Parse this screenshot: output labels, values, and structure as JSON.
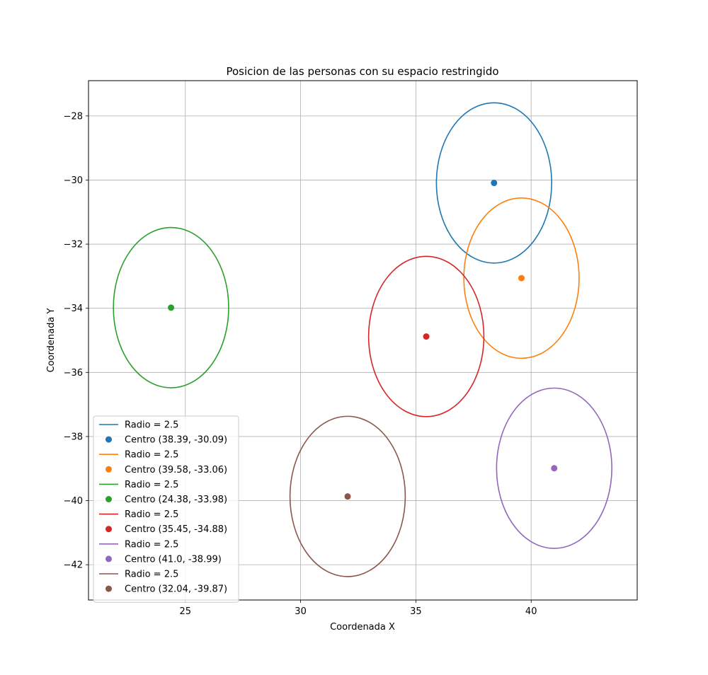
{
  "chart_data": {
    "type": "scatter",
    "title": "Posicion de las personas con su espacio restringido",
    "xlabel": "Coordenada X",
    "ylabel": "Coordenada Y",
    "xlim": [
      20.8,
      44.6
    ],
    "ylim": [
      -43.1,
      -26.9
    ],
    "xticks": [
      25,
      30,
      35,
      40
    ],
    "yticks": [
      -28,
      -30,
      -32,
      -34,
      -36,
      -38,
      -40,
      -42
    ],
    "xtick_labels": [
      "25",
      "30",
      "35",
      "40"
    ],
    "ytick_labels": [
      "−28",
      "−30",
      "−32",
      "−34",
      "−36",
      "−38",
      "−40",
      "−42"
    ],
    "grid": true,
    "legend_position": "lower-left",
    "series": [
      {
        "circle_label": "Radio = 2.5",
        "center_label": "Centro (38.39, -30.09)",
        "cx": 38.39,
        "cy": -30.09,
        "r": 2.5,
        "color": "#1f77b4"
      },
      {
        "circle_label": "Radio = 2.5",
        "center_label": "Centro (39.58, -33.06)",
        "cx": 39.58,
        "cy": -33.06,
        "r": 2.5,
        "color": "#ff7f0e"
      },
      {
        "circle_label": "Radio = 2.5",
        "center_label": "Centro (24.38, -33.98)",
        "cx": 24.38,
        "cy": -33.98,
        "r": 2.5,
        "color": "#2ca02c"
      },
      {
        "circle_label": "Radio = 2.5",
        "center_label": "Centro (35.45, -34.88)",
        "cx": 35.45,
        "cy": -34.88,
        "r": 2.5,
        "color": "#d62728"
      },
      {
        "circle_label": "Radio = 2.5",
        "center_label": "Centro (41.0, -38.99)",
        "cx": 41.0,
        "cy": -38.99,
        "r": 2.5,
        "color": "#9467bd"
      },
      {
        "circle_label": "Radio = 2.5",
        "center_label": "Centro (32.04, -39.87)",
        "cx": 32.04,
        "cy": -39.87,
        "r": 2.5,
        "color": "#8c564b"
      }
    ]
  }
}
